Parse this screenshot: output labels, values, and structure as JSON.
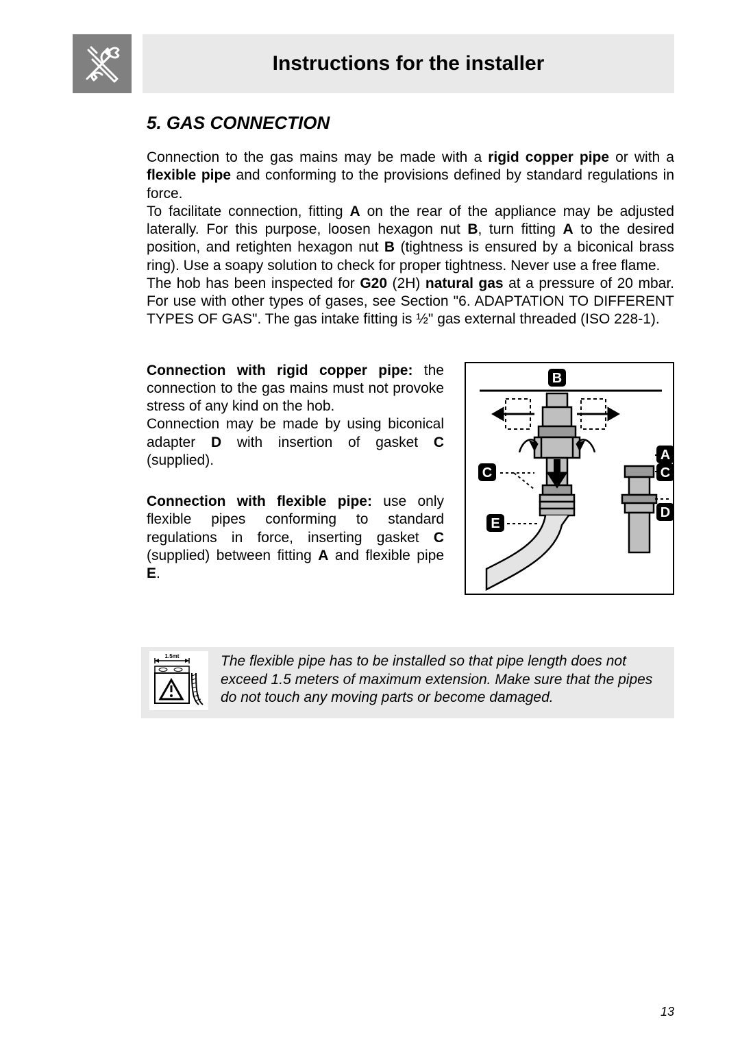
{
  "header": {
    "title": "Instructions for the installer"
  },
  "section": {
    "heading": "5.  GAS CONNECTION"
  },
  "para1_html": "Connection to the gas mains may be made with a <b>rigid copper pipe</b> or with a <b>flexible pipe</b> and conforming to the provisions defined by standard regulations in force.<br>To facilitate connection, fitting <b>A</b> on the rear of the appliance may be adjusted laterally. For this purpose, loosen hexagon nut <b>B</b>, turn fitting <b>A</b> to the desired position, and retighten hexagon nut <b>B</b> (tightness is ensured by a biconical brass ring). Use a soapy solution to check for proper tightness. Never use a free flame.<br>The hob has been inspected for <b>G20</b> (2H) <b>natural gas</b> at a pressure of 20 mbar. For use with other types of gases, see Section \"6. ADAPTATION TO DIFFERENT TYPES OF GAS\". The gas intake fitting is ½\" gas external threaded (ISO 228-1).",
  "conn_rigid_html": "<b>Connection with rigid copper pipe:</b> the connection to the gas mains must not provoke stress of any kind on the hob.<br>Connection may be made by using biconical adapter <b>D</b> with insertion of gasket <b>C</b> (supplied).",
  "conn_flex_html": "<b>Connection with flexible pipe:</b> use only flexible pipes conforming to standard regulations in force, inserting gasket <b>C</b> (supplied) between fitting <b>A</b> and flexible pipe <b>E</b>.",
  "note_text": "The flexible pipe has to be installed so that pipe length does not exceed 1.5 meters of maximum extension. Make sure that the pipes do not touch any moving parts or become damaged.",
  "diagram": {
    "labels": {
      "A": "A",
      "B": "B",
      "C": "C",
      "D": "D",
      "E": "E"
    },
    "length_label": "1.5mt"
  },
  "page_number": "13",
  "colors": {
    "header_bg": "#e9e9e9",
    "icon_bg": "#808080",
    "note_bg": "#e9e9e9",
    "text": "#000000"
  }
}
